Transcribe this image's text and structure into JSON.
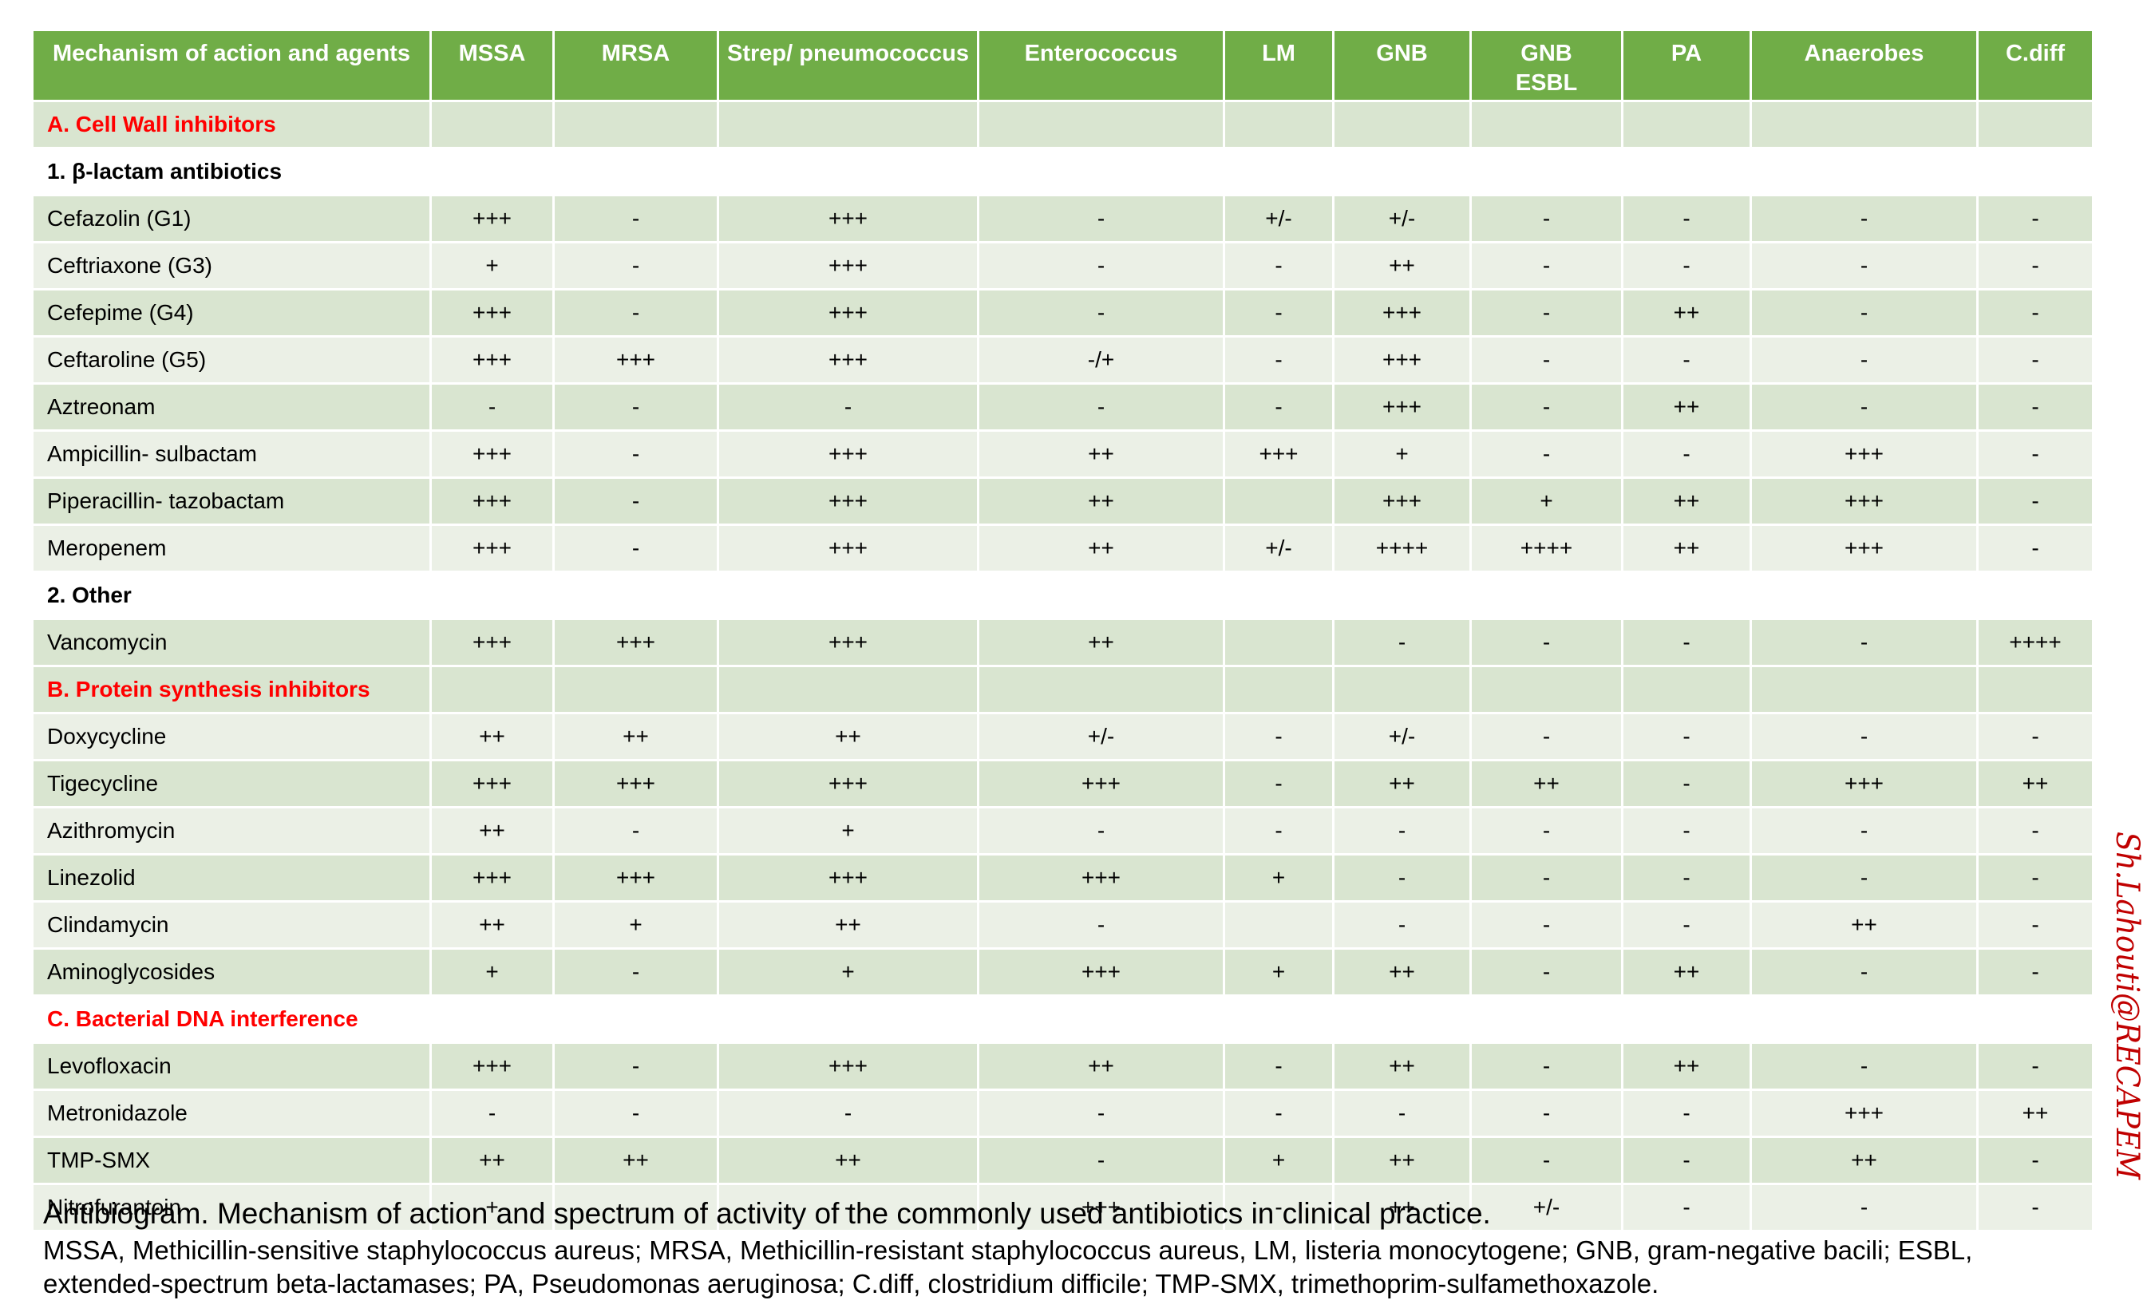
{
  "columns": [
    "Mechanism of action and agents",
    "MSSA",
    "MRSA",
    "Strep/ pneumococcus",
    "Enterococcus",
    "LM",
    "GNB",
    "GNB ESBL",
    "PA",
    "Anaerobes",
    "C.diff"
  ],
  "rows": [
    {
      "kind": "section",
      "label": "A. Cell Wall inhibitors",
      "cells": [
        "",
        "",
        "",
        "",
        "",
        "",
        "",
        "",
        "",
        ""
      ]
    },
    {
      "kind": "sub",
      "label": "1. β-lactam antibiotics",
      "cells": [
        "",
        "",
        "",
        "",
        "",
        "",
        "",
        "",
        "",
        ""
      ]
    },
    {
      "kind": "band",
      "label": "Cefazolin (G1)",
      "cells": [
        "+++",
        "-",
        "+++",
        "-",
        "+/-",
        "+/-",
        "-",
        "-",
        "-",
        "-"
      ]
    },
    {
      "kind": "light",
      "label": "Ceftriaxone (G3)",
      "cells": [
        "+",
        "-",
        "+++",
        "-",
        "-",
        "++",
        "-",
        "-",
        "-",
        "-"
      ]
    },
    {
      "kind": "band",
      "label": "Cefepime (G4)",
      "cells": [
        "+++",
        "-",
        "+++",
        "-",
        "-",
        "+++",
        "-",
        "++",
        "-",
        "-"
      ]
    },
    {
      "kind": "light",
      "label": "Ceftaroline (G5)",
      "cells": [
        "+++",
        "+++",
        "+++",
        "-/+",
        "-",
        "+++",
        "-",
        "-",
        "-",
        "-"
      ]
    },
    {
      "kind": "band",
      "label": "Aztreonam",
      "cells": [
        "-",
        "-",
        "-",
        "-",
        "-",
        "+++",
        "-",
        "++",
        "-",
        "-"
      ]
    },
    {
      "kind": "light",
      "label": "Ampicillin- sulbactam",
      "cells": [
        "+++",
        "-",
        "+++",
        "++",
        "+++",
        "+",
        "-",
        "-",
        "+++",
        "-"
      ]
    },
    {
      "kind": "band",
      "label": "Piperacillin- tazobactam",
      "cells": [
        "+++",
        "-",
        "+++",
        "++",
        "",
        "+++",
        "+",
        "++",
        "+++",
        "-"
      ]
    },
    {
      "kind": "light",
      "label": "Meropenem",
      "cells": [
        "+++",
        "-",
        "+++",
        "++",
        "+/-",
        "++++",
        "++++",
        "++",
        "+++",
        "-"
      ]
    },
    {
      "kind": "sub",
      "label": "2. Other",
      "cells": [
        "",
        "",
        "",
        "",
        "",
        "",
        "",
        "",
        "",
        ""
      ]
    },
    {
      "kind": "band",
      "label": "Vancomycin",
      "cells": [
        "+++",
        "+++",
        "+++",
        "++",
        "",
        "-",
        "-",
        "-",
        "-",
        "++++"
      ]
    },
    {
      "kind": "section",
      "label": "B. Protein synthesis inhibitors",
      "cells": [
        "",
        "",
        "",
        "",
        "",
        "",
        "",
        "",
        "",
        ""
      ]
    },
    {
      "kind": "light",
      "label": "Doxycycline",
      "cells": [
        "++",
        "++",
        "++",
        "+/-",
        "-",
        "+/-",
        "-",
        "-",
        "-",
        "-"
      ]
    },
    {
      "kind": "band",
      "label": "Tigecycline",
      "cells": [
        "+++",
        "+++",
        "+++",
        "+++",
        "-",
        "++",
        "++",
        "-",
        "+++",
        "++"
      ]
    },
    {
      "kind": "light",
      "label": "Azithromycin",
      "cells": [
        "++",
        "-",
        "+",
        "-",
        "-",
        "-",
        "-",
        "-",
        "-",
        "-"
      ]
    },
    {
      "kind": "band",
      "label": "Linezolid",
      "cells": [
        "+++",
        "+++",
        "+++",
        "+++",
        "+",
        "-",
        "-",
        "-",
        "-",
        "-"
      ]
    },
    {
      "kind": "light",
      "label": "Clindamycin",
      "cells": [
        "++",
        "+",
        "++",
        "-",
        "",
        "-",
        "-",
        "-",
        "++",
        "-"
      ]
    },
    {
      "kind": "band",
      "label": "Aminoglycosides",
      "cells": [
        "+",
        "-",
        "+",
        "+++",
        "+",
        "++",
        "-",
        "++",
        "-",
        "-"
      ]
    },
    {
      "kind": "section-white",
      "label": "C. Bacterial DNA interference",
      "cells": [
        "",
        "",
        "",
        "",
        "",
        "",
        "",
        "",
        "",
        ""
      ]
    },
    {
      "kind": "band",
      "label": "Levofloxacin",
      "cells": [
        "+++",
        "-",
        "+++",
        "++",
        "-",
        "++",
        "-",
        "++",
        "-",
        "-"
      ]
    },
    {
      "kind": "light",
      "label": "Metronidazole",
      "cells": [
        "-",
        "-",
        "-",
        "-",
        "-",
        "-",
        "-",
        "-",
        "+++",
        "++"
      ]
    },
    {
      "kind": "band",
      "label": "TMP-SMX",
      "cells": [
        "++",
        "++",
        "++",
        "-",
        "+",
        "++",
        "-",
        "-",
        "++",
        "-"
      ]
    },
    {
      "kind": "light",
      "label": "Nitrofurantoin",
      "cells": [
        "+",
        "-",
        "-",
        "+++",
        "-",
        "++",
        "+/-",
        "-",
        "-",
        "-"
      ]
    }
  ],
  "caption": {
    "title": "Antibiogram. Mechanism of action and spectrum of activity of the commonly used antibiotics in clinical practice.",
    "legend": "MSSA, Methicillin-sensitive staphylococcus aureus; MRSA, Methicillin-resistant staphylococcus aureus, LM, listeria monocytogene; GNB, gram-negative bacili; ESBL, extended-spectrum beta-lactamases; PA, Pseudomonas aeruginosa; C.diff, clostridium difficile; TMP-SMX, trimethoprim-sulfamethoxazole."
  },
  "watermark": "Sh.Lahouti@RECAPEM",
  "colors": {
    "header_green": "#70ad47",
    "band_green": "#d9e5d0",
    "light_green": "#ebf0e6",
    "section_red": "#ff0000",
    "watermark_red": "#c00000"
  }
}
